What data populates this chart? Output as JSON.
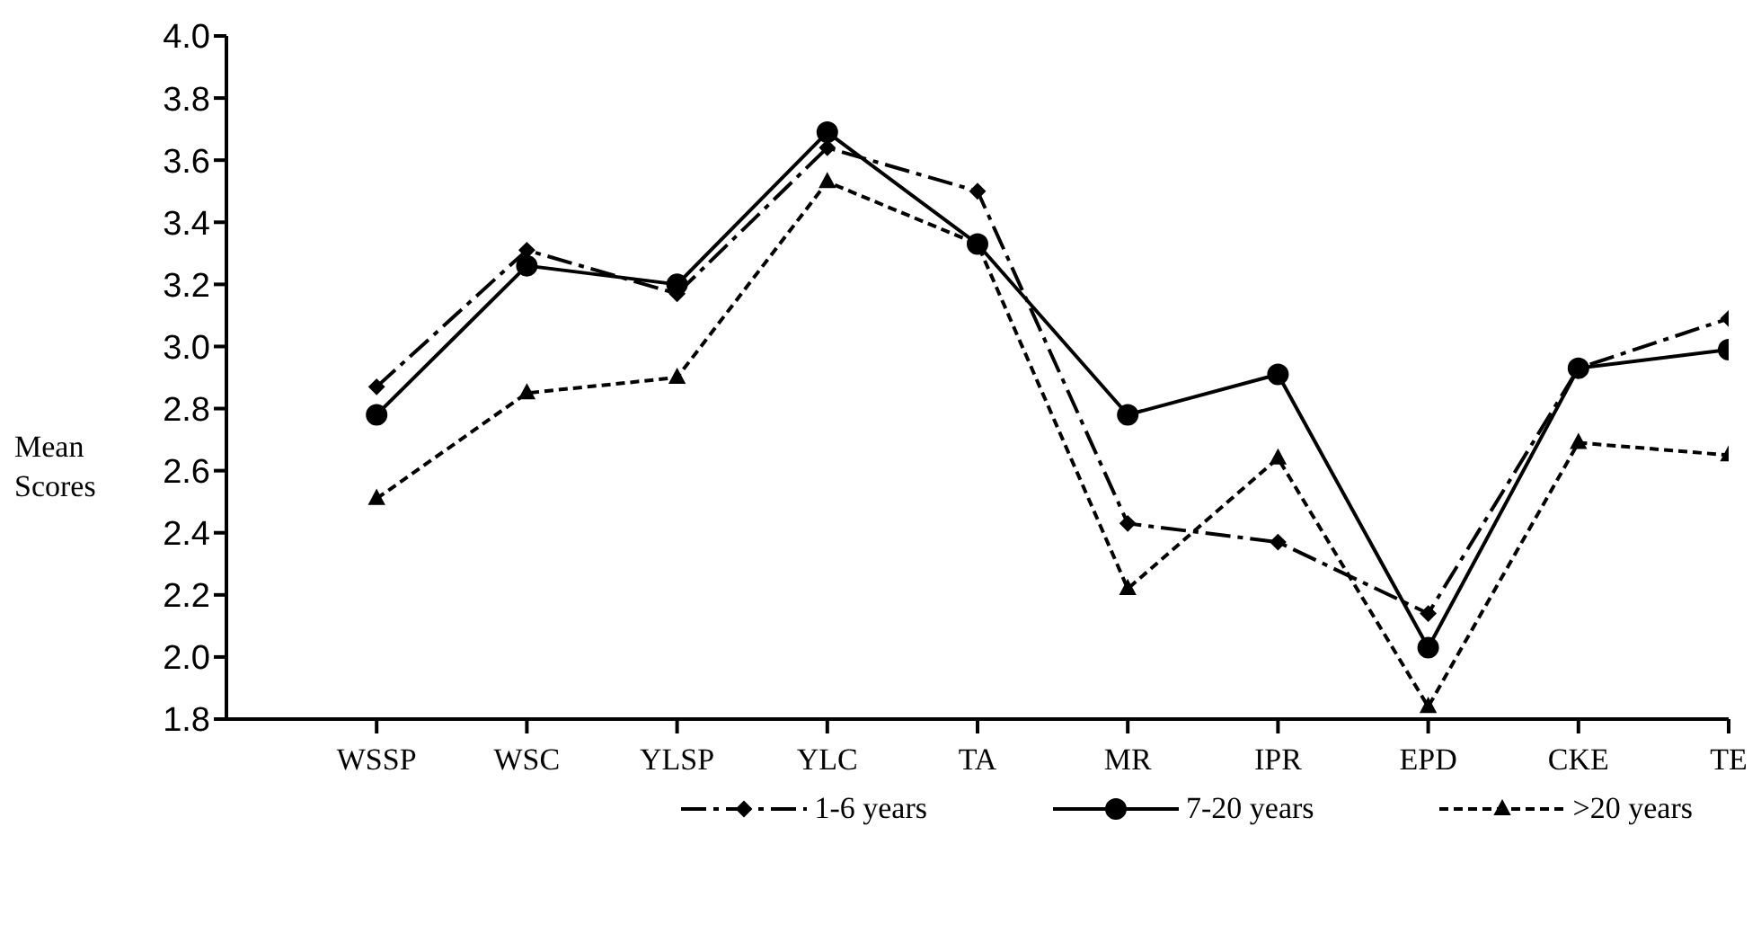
{
  "chart_data": {
    "type": "line",
    "ylabel": "Mean Scores",
    "categories": [
      "WSSP",
      "WSC",
      "YLSP",
      "YLC",
      "TA",
      "MR",
      "IPR",
      "EPD",
      "CKE",
      "TE"
    ],
    "series": [
      {
        "name": "1-6 years",
        "color": "#000000",
        "marker": "diamond",
        "line_style": "dashdot",
        "values": [
          2.87,
          3.31,
          3.17,
          3.64,
          3.5,
          2.43,
          2.37,
          2.14,
          2.93,
          3.09
        ]
      },
      {
        "name": "7-20 years",
        "color": "#000000",
        "marker": "circle",
        "line_style": "solid",
        "values": [
          2.78,
          3.26,
          3.2,
          3.69,
          3.33,
          2.78,
          2.91,
          2.03,
          2.93,
          2.99
        ]
      },
      {
        "name": ">20 years",
        "color": "#000000",
        "marker": "triangle",
        "line_style": "dashed",
        "values": [
          2.51,
          2.85,
          2.9,
          3.53,
          3.33,
          2.22,
          2.64,
          1.84,
          2.69,
          2.65
        ]
      }
    ],
    "ylim": [
      1.8,
      4.0
    ],
    "yticks": [
      {
        "value": 1.8,
        "label": "1.8"
      },
      {
        "value": 2.0,
        "label": "2.0"
      },
      {
        "value": 2.2,
        "label": "2.2"
      },
      {
        "value": 2.4,
        "label": "2.4"
      },
      {
        "value": 2.6,
        "label": "2.6"
      },
      {
        "value": 2.8,
        "label": "2.8"
      },
      {
        "value": 3.0,
        "label": "3.0"
      },
      {
        "value": 3.2,
        "label": "3.2"
      },
      {
        "value": 3.4,
        "label": "3.4"
      },
      {
        "value": 3.6,
        "label": "3.6"
      },
      {
        "value": 3.8,
        "label": "3.8"
      },
      {
        "value": 4.0,
        "label": "4.0"
      }
    ],
    "grid": false,
    "legend": "bottom"
  }
}
